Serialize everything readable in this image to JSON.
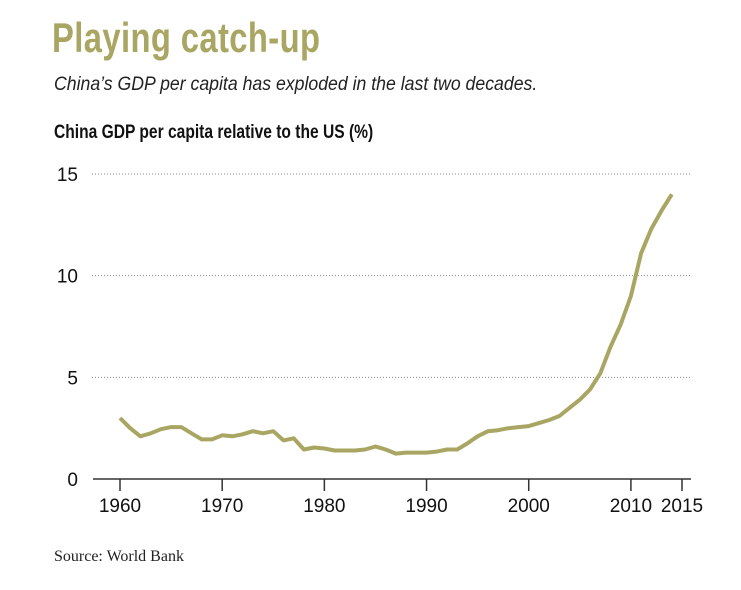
{
  "chart_data": {
    "type": "line",
    "title": "Playing catch-up",
    "subtitle": "China’s GDP per capita has exploded in the last two decades.",
    "ylabel": "China GDP per capita relative to the US (%)",
    "xlabel": "",
    "source": "Source: World Bank",
    "xlim": [
      1960,
      2015
    ],
    "ylim": [
      0,
      15
    ],
    "x_ticks": [
      1960,
      1970,
      1980,
      1990,
      2000,
      2010,
      2015
    ],
    "y_ticks": [
      0,
      5,
      10,
      15
    ],
    "grid": "horizontal dotted",
    "line_color": "#a8a662",
    "x": [
      1960,
      1961,
      1962,
      1963,
      1964,
      1965,
      1966,
      1967,
      1968,
      1969,
      1970,
      1971,
      1972,
      1973,
      1974,
      1975,
      1976,
      1977,
      1978,
      1979,
      1980,
      1981,
      1982,
      1983,
      1984,
      1985,
      1986,
      1987,
      1988,
      1989,
      1990,
      1991,
      1992,
      1993,
      1994,
      1995,
      1996,
      1997,
      1998,
      1999,
      2000,
      2001,
      2002,
      2003,
      2004,
      2005,
      2006,
      2007,
      2008,
      2009,
      2010,
      2011,
      2012,
      2013,
      2014
    ],
    "values": [
      3.0,
      2.5,
      2.1,
      2.25,
      2.45,
      2.55,
      2.55,
      2.25,
      1.95,
      1.95,
      2.15,
      2.1,
      2.2,
      2.35,
      2.25,
      2.35,
      1.9,
      2.0,
      1.45,
      1.55,
      1.5,
      1.4,
      1.4,
      1.4,
      1.45,
      1.6,
      1.45,
      1.25,
      1.3,
      1.3,
      1.3,
      1.35,
      1.45,
      1.45,
      1.75,
      2.1,
      2.35,
      2.4,
      2.5,
      2.55,
      2.6,
      2.75,
      2.9,
      3.1,
      3.5,
      3.9,
      4.4,
      5.2,
      6.5,
      7.6,
      9.0,
      11.1,
      12.3,
      13.2,
      14.0
    ]
  }
}
